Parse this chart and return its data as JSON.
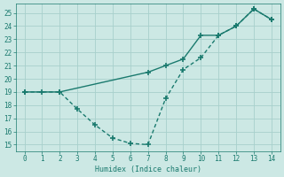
{
  "line1_x": [
    0,
    1,
    2,
    7,
    8,
    9,
    10,
    11,
    12,
    13,
    14
  ],
  "line1_y": [
    19,
    19,
    19,
    20.5,
    21.0,
    21.5,
    23.3,
    23.3,
    24.0,
    25.3,
    24.5
  ],
  "line2_x": [
    0,
    2,
    3,
    4,
    5,
    6,
    7,
    8,
    9,
    10,
    11,
    12,
    13,
    14
  ],
  "line2_y": [
    19,
    19,
    17.7,
    16.5,
    15.5,
    15.1,
    15.0,
    18.5,
    20.7,
    21.6,
    23.3,
    24.0,
    25.3,
    24.5
  ],
  "color": "#1a7a6e",
  "bg_color": "#cce8e4",
  "grid_color": "#a8d0cc",
  "xlabel": "Humidex (Indice chaleur)",
  "xlim": [
    -0.5,
    14.5
  ],
  "ylim": [
    14.5,
    25.7
  ],
  "xticks": [
    0,
    1,
    2,
    3,
    4,
    5,
    6,
    7,
    8,
    9,
    10,
    11,
    12,
    13,
    14
  ],
  "yticks": [
    15,
    16,
    17,
    18,
    19,
    20,
    21,
    22,
    23,
    24,
    25
  ],
  "marker": "+",
  "markersize": 4.5,
  "linewidth": 1.0,
  "label_fontsize": 6.0,
  "tick_fontsize": 5.5
}
